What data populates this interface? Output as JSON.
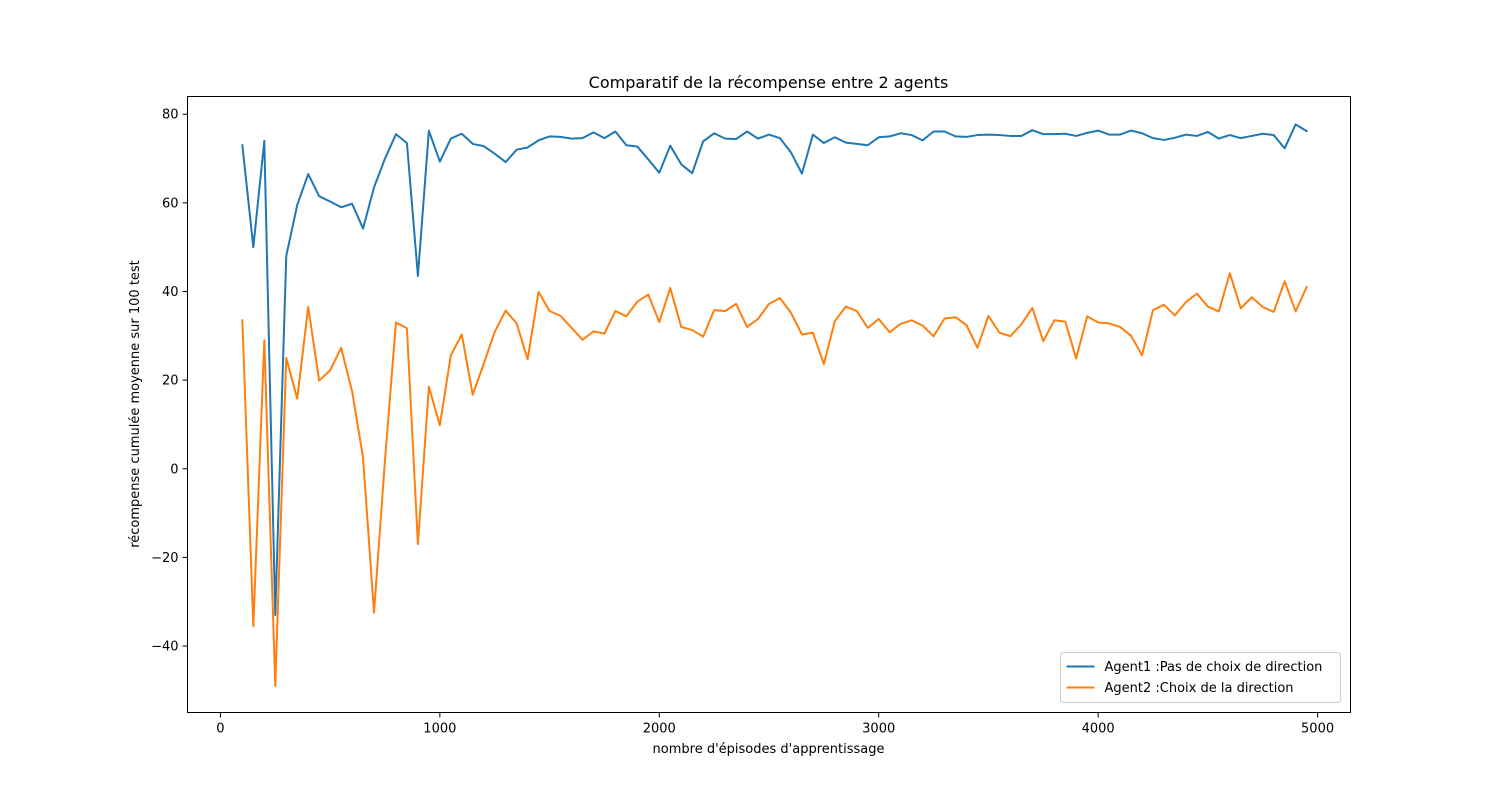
{
  "chart_data": {
    "type": "line",
    "title": "Comparatif de la récompense entre 2 agents",
    "xlabel": "nombre d'épisodes d'apprentissage",
    "ylabel": "récompense cumulée moyenne sur 100 test",
    "xlim": [
      -150,
      5150
    ],
    "ylim": [
      -55,
      84
    ],
    "xticks": [
      0,
      1000,
      2000,
      3000,
      4000,
      5000
    ],
    "xtick_labels": [
      "0",
      "1000",
      "2000",
      "3000",
      "4000",
      "5000"
    ],
    "yticks": [
      -40,
      -20,
      0,
      20,
      40,
      60,
      80
    ],
    "ytick_labels": [
      "−40",
      "−20",
      "0",
      "20",
      "40",
      "60",
      "80"
    ],
    "grid": false,
    "legend_position": "lower-right",
    "x": [
      100,
      150,
      200,
      250,
      300,
      350,
      400,
      450,
      500,
      550,
      600,
      650,
      700,
      750,
      800,
      850,
      900,
      950,
      1000,
      1050,
      1100,
      1150,
      1200,
      1250,
      1300,
      1350,
      1400,
      1450,
      1500,
      1550,
      1600,
      1650,
      1700,
      1750,
      1800,
      1850,
      1900,
      1950,
      2000,
      2050,
      2100,
      2150,
      2200,
      2250,
      2300,
      2350,
      2400,
      2450,
      2500,
      2550,
      2600,
      2650,
      2700,
      2750,
      2800,
      2850,
      2900,
      2950,
      3000,
      3050,
      3100,
      3150,
      3200,
      3250,
      3300,
      3350,
      3400,
      3450,
      3500,
      3550,
      3600,
      3650,
      3700,
      3750,
      3800,
      3850,
      3900,
      3950,
      4000,
      4050,
      4100,
      4150,
      4200,
      4250,
      4300,
      4350,
      4400,
      4450,
      4500,
      4550,
      4600,
      4650,
      4700,
      4750,
      4800,
      4850,
      4900,
      4950
    ],
    "series": [
      {
        "name": "Agent1 :Pas de choix de direction",
        "color": "#1f77b4",
        "values": [
          73,
          50,
          74,
          -33,
          48,
          59.5,
          66.5,
          61.5,
          60.3,
          59,
          59.8,
          54.2,
          63.5,
          70,
          75.5,
          73.5,
          43.5,
          76.3,
          69.3,
          74.5,
          75.6,
          73.3,
          72.8,
          71.1,
          69.2,
          72,
          72.5,
          74.1,
          75,
          74.9,
          74.5,
          74.6,
          75.9,
          74.6,
          76.1,
          73,
          72.7,
          69.8,
          66.8,
          72.9,
          68.7,
          66.7,
          73.9,
          75.7,
          74.5,
          74.4,
          76.1,
          74.5,
          75.4,
          74.6,
          71.4,
          66.6,
          75.4,
          73.5,
          74.8,
          73.6,
          73.3,
          73,
          74.8,
          75,
          75.7,
          75.3,
          74.1,
          76.1,
          76.1,
          75,
          74.9,
          75.3,
          75.4,
          75.3,
          75.1,
          75.1,
          76.4,
          75.5,
          75.5,
          75.6,
          75.1,
          75.8,
          76.3,
          75.4,
          75.4,
          76.3,
          75.7,
          74.6,
          74.2,
          74.7,
          75.4,
          75.1,
          76,
          74.5,
          75.3,
          74.6,
          75.1,
          75.6,
          75.3,
          72.3,
          77.7,
          76.2
        ]
      },
      {
        "name": "Agent2 :Choix de la direction",
        "color": "#ff7f0e",
        "values": [
          33.5,
          -35.5,
          29,
          -49,
          25,
          15.8,
          36.5,
          19.9,
          22.2,
          27.3,
          17.5,
          2.5,
          -32.5,
          2,
          33,
          31.7,
          -17,
          18.5,
          9.8,
          25.6,
          30.3,
          16.7,
          23.7,
          30.9,
          35.7,
          32.8,
          24.7,
          39.9,
          35.6,
          34.5,
          31.8,
          29.1,
          31,
          30.5,
          35.6,
          34.4,
          37.7,
          39.3,
          33.1,
          40.8,
          32,
          31.3,
          29.8,
          35.8,
          35.6,
          37.2,
          32,
          33.8,
          37.2,
          38.5,
          35.2,
          30.3,
          30.7,
          23.6,
          33.3,
          36.6,
          35.6,
          31.8,
          33.8,
          30.8,
          32.7,
          33.5,
          32.3,
          29.9,
          33.9,
          34.2,
          32.4,
          27.3,
          34.5,
          30.7,
          29.9,
          32.6,
          36.3,
          28.8,
          33.5,
          33.2,
          24.9,
          34.4,
          33,
          32.8,
          32,
          30,
          25.6,
          35.8,
          37,
          34.6,
          37.6,
          39.5,
          36.6,
          35.5,
          44.1,
          36.2,
          38.7,
          36.5,
          35.4,
          42.3,
          35.5,
          41
        ]
      }
    ]
  }
}
